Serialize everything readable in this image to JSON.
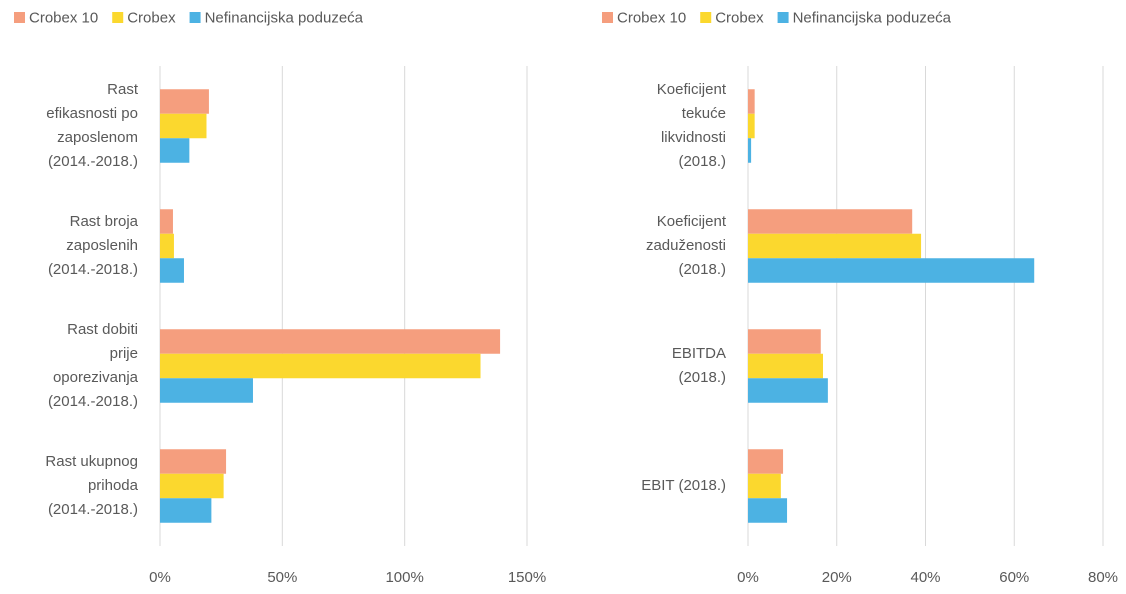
{
  "chart_data": [
    {
      "type": "barh",
      "legend": "top",
      "categories": [
        "Rast\nefikasnosti po\nzaposlenom\n(2014.-2018.)",
        "Rast broja\nzaposlenih\n(2014.-2018.)",
        "Rast dobiti\nprije\noporezivanja\n(2014.-2018.)",
        "Rast ukupnog\nprihoda\n(2014.-2018.)"
      ],
      "series": [
        {
          "name": "Crobex 10",
          "color": "#f59e7e",
          "values": [
            20,
            5.3,
            139,
            27
          ]
        },
        {
          "name": "Crobex",
          "color": "#fbd82e",
          "values": [
            19,
            5.7,
            131,
            26
          ]
        },
        {
          "name": "Nefinancijska poduzeća",
          "color": "#4cb2e3",
          "values": [
            12,
            9.8,
            38,
            21
          ]
        }
      ],
      "xlim": [
        0,
        150
      ],
      "xticks": [
        {
          "value": 0,
          "label": "0%"
        },
        {
          "value": 50,
          "label": "50%"
        },
        {
          "value": 100,
          "label": "100%"
        },
        {
          "value": 150,
          "label": "150%"
        }
      ],
      "grid": true
    },
    {
      "type": "barh",
      "legend": "top",
      "categories": [
        "Koeficijent\ntekuće\nlikvidnosti\n(2018.)",
        "Koeficijent\nzaduženosti\n(2018.)",
        "EBITDA\n(2018.)",
        "EBIT (2018.)"
      ],
      "series": [
        {
          "name": "Crobex 10",
          "color": "#f59e7e",
          "values": [
            1.5,
            37,
            16.4,
            7.9
          ]
        },
        {
          "name": "Crobex",
          "color": "#fbd82e",
          "values": [
            1.5,
            39,
            16.9,
            7.4
          ]
        },
        {
          "name": "Nefinancijska poduzeća",
          "color": "#4cb2e3",
          "values": [
            0.7,
            64.5,
            18,
            8.8
          ]
        }
      ],
      "xlim": [
        0,
        80
      ],
      "xticks": [
        {
          "value": 0,
          "label": "0%"
        },
        {
          "value": 20,
          "label": "20%"
        },
        {
          "value": 40,
          "label": "40%"
        },
        {
          "value": 60,
          "label": "60%"
        },
        {
          "value": 80,
          "label": "80%"
        }
      ],
      "grid": true
    }
  ]
}
